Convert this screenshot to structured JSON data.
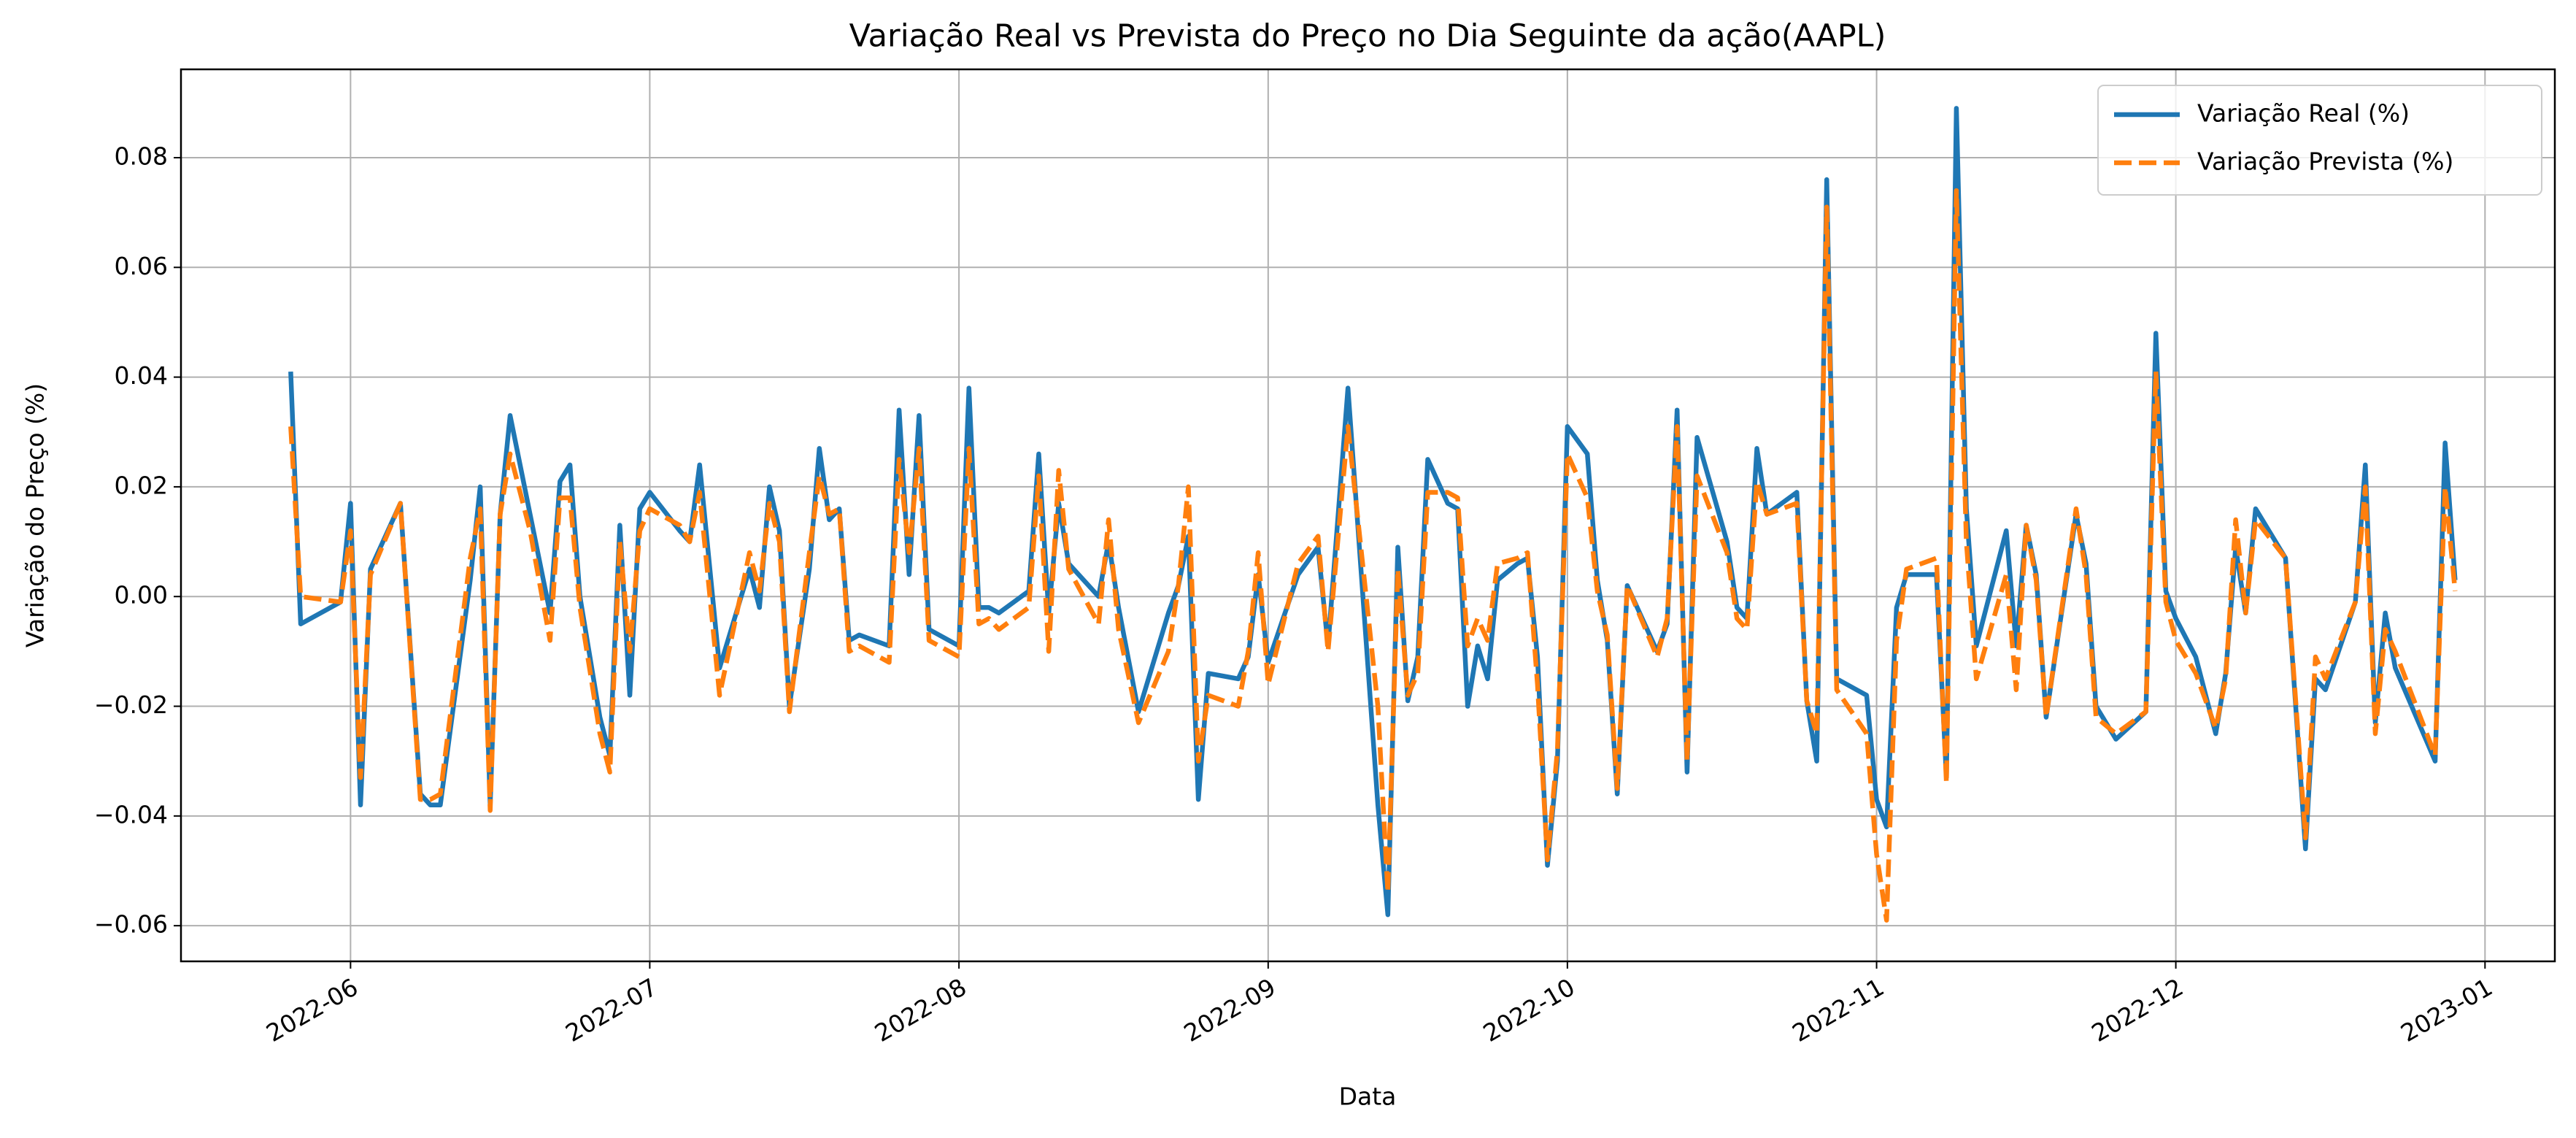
{
  "chart_data": {
    "type": "line",
    "title": "Variação Real vs Prevista do Preço no Dia Seguinte da ação(AAPL)",
    "xlabel": "Data",
    "ylabel": "Variação do Preço (%)",
    "x": [
      "2022-05-26",
      "2022-05-27",
      "2022-05-31",
      "2022-06-01",
      "2022-06-02",
      "2022-06-03",
      "2022-06-06",
      "2022-06-08",
      "2022-06-09",
      "2022-06-10",
      "2022-06-13",
      "2022-06-14",
      "2022-06-15",
      "2022-06-16",
      "2022-06-17",
      "2022-06-19",
      "2022-06-21",
      "2022-06-22",
      "2022-06-23",
      "2022-06-24",
      "2022-06-26",
      "2022-06-27",
      "2022-06-28",
      "2022-06-29",
      "2022-06-30",
      "2022-07-01",
      "2022-07-04",
      "2022-07-05",
      "2022-07-06",
      "2022-07-08",
      "2022-07-11",
      "2022-07-12",
      "2022-07-13",
      "2022-07-14",
      "2022-07-15",
      "2022-07-17",
      "2022-07-18",
      "2022-07-19",
      "2022-07-20",
      "2022-07-21",
      "2022-07-22",
      "2022-07-25",
      "2022-07-26",
      "2022-07-27",
      "2022-07-28",
      "2022-07-29",
      "2022-08-01",
      "2022-08-02",
      "2022-08-03",
      "2022-08-04",
      "2022-08-05",
      "2022-08-08",
      "2022-08-09",
      "2022-08-10",
      "2022-08-11",
      "2022-08-12",
      "2022-08-15",
      "2022-08-16",
      "2022-08-17",
      "2022-08-19",
      "2022-08-22",
      "2022-08-23",
      "2022-08-24",
      "2022-08-25",
      "2022-08-26",
      "2022-08-29",
      "2022-08-30",
      "2022-08-31",
      "2022-09-01",
      "2022-09-04",
      "2022-09-06",
      "2022-09-07",
      "2022-09-09",
      "2022-09-12",
      "2022-09-13",
      "2022-09-14",
      "2022-09-15",
      "2022-09-16",
      "2022-09-17",
      "2022-09-19",
      "2022-09-20",
      "2022-09-21",
      "2022-09-22",
      "2022-09-23",
      "2022-09-24",
      "2022-09-26",
      "2022-09-27",
      "2022-09-28",
      "2022-09-29",
      "2022-09-30",
      "2022-10-01",
      "2022-10-03",
      "2022-10-04",
      "2022-10-05",
      "2022-10-06",
      "2022-10-07",
      "2022-10-10",
      "2022-10-11",
      "2022-10-12",
      "2022-10-13",
      "2022-10-14",
      "2022-10-17",
      "2022-10-18",
      "2022-10-19",
      "2022-10-20",
      "2022-10-21",
      "2022-10-24",
      "2022-10-25",
      "2022-10-26",
      "2022-10-27",
      "2022-10-28",
      "2022-10-31",
      "2022-11-01",
      "2022-11-02",
      "2022-11-03",
      "2022-11-04",
      "2022-11-07",
      "2022-11-08",
      "2022-11-09",
      "2022-11-10",
      "2022-11-11",
      "2022-11-14",
      "2022-11-15",
      "2022-11-16",
      "2022-11-17",
      "2022-11-18",
      "2022-11-21",
      "2022-11-22",
      "2022-11-23",
      "2022-11-25",
      "2022-11-28",
      "2022-11-29",
      "2022-11-30",
      "2022-12-01",
      "2022-12-03",
      "2022-12-05",
      "2022-12-06",
      "2022-12-07",
      "2022-12-08",
      "2022-12-09",
      "2022-12-12",
      "2022-12-14",
      "2022-12-15",
      "2022-12-16",
      "2022-12-19",
      "2022-12-20",
      "2022-12-21",
      "2022-12-22",
      "2022-12-23",
      "2022-12-27",
      "2022-12-28",
      "2022-12-29"
    ],
    "series": [
      {
        "name": "Variação Real (%)",
        "color": "#1f77b4",
        "dash": "solid",
        "values": [
          0.041,
          -0.005,
          -0.001,
          0.017,
          -0.038,
          0.005,
          0.017,
          -0.036,
          -0.038,
          -0.038,
          0.003,
          0.02,
          -0.038,
          0.015,
          0.033,
          0.015,
          -0.003,
          0.021,
          0.024,
          0.0,
          -0.022,
          -0.029,
          0.013,
          -0.018,
          0.016,
          0.019,
          0.012,
          0.01,
          0.024,
          -0.013,
          0.005,
          -0.002,
          0.02,
          0.012,
          -0.02,
          0.005,
          0.027,
          0.014,
          0.016,
          -0.008,
          -0.007,
          -0.009,
          0.034,
          0.004,
          0.033,
          -0.006,
          -0.009,
          0.038,
          -0.002,
          -0.002,
          -0.003,
          0.001,
          0.026,
          -0.003,
          0.017,
          0.006,
          0.0,
          0.01,
          -0.002,
          -0.021,
          -0.003,
          0.002,
          0.011,
          -0.037,
          -0.014,
          -0.015,
          -0.011,
          0.004,
          -0.012,
          0.004,
          0.009,
          -0.009,
          0.038,
          -0.038,
          -0.058,
          0.009,
          -0.019,
          -0.011,
          0.025,
          0.017,
          0.016,
          -0.02,
          -0.009,
          -0.015,
          0.003,
          0.006,
          0.007,
          -0.011,
          -0.049,
          -0.03,
          0.031,
          0.026,
          0.003,
          -0.008,
          -0.036,
          0.002,
          -0.01,
          -0.005,
          0.034,
          -0.032,
          0.029,
          0.01,
          -0.002,
          -0.004,
          0.027,
          0.015,
          0.019,
          -0.019,
          -0.03,
          0.076,
          -0.015,
          -0.018,
          -0.037,
          -0.042,
          -0.002,
          0.004,
          0.004,
          -0.033,
          0.089,
          0.016,
          -0.009,
          0.012,
          -0.009,
          0.013,
          0.004,
          -0.022,
          0.015,
          0.006,
          -0.02,
          -0.026,
          -0.021,
          0.048,
          0.001,
          -0.004,
          -0.011,
          -0.025,
          -0.014,
          0.009,
          -0.003,
          0.016,
          0.007,
          -0.046,
          -0.015,
          -0.017,
          -0.001,
          0.024,
          -0.023,
          -0.003,
          -0.013,
          -0.03,
          0.028,
          0.003
        ]
      },
      {
        "name": "Variação Prevista (%)",
        "color": "#ff7f0e",
        "dash": "dashed",
        "values": [
          0.031,
          0.0,
          -0.001,
          0.012,
          -0.033,
          0.004,
          0.017,
          -0.037,
          -0.037,
          -0.036,
          0.007,
          0.016,
          -0.039,
          0.015,
          0.026,
          0.012,
          -0.008,
          0.018,
          0.018,
          -0.002,
          -0.025,
          -0.032,
          0.01,
          -0.01,
          0.012,
          0.016,
          0.013,
          0.01,
          0.019,
          -0.018,
          0.008,
          0.001,
          0.017,
          0.01,
          -0.021,
          0.008,
          0.022,
          0.015,
          0.016,
          -0.01,
          -0.009,
          -0.012,
          0.025,
          0.008,
          0.027,
          -0.008,
          -0.011,
          0.027,
          -0.005,
          -0.004,
          -0.006,
          -0.002,
          0.022,
          -0.01,
          0.023,
          0.005,
          -0.005,
          0.014,
          -0.006,
          -0.023,
          -0.01,
          0.002,
          0.02,
          -0.03,
          -0.018,
          -0.02,
          -0.01,
          0.008,
          -0.016,
          0.006,
          0.011,
          -0.01,
          0.031,
          -0.02,
          -0.054,
          0.005,
          -0.018,
          -0.014,
          0.019,
          0.019,
          0.018,
          -0.009,
          -0.004,
          -0.008,
          0.006,
          0.007,
          0.008,
          -0.016,
          -0.048,
          -0.028,
          0.026,
          0.018,
          0.001,
          -0.007,
          -0.035,
          0.002,
          -0.011,
          -0.004,
          0.031,
          -0.03,
          0.022,
          0.008,
          -0.004,
          -0.006,
          0.021,
          0.015,
          0.017,
          -0.019,
          -0.025,
          0.071,
          -0.017,
          -0.025,
          -0.047,
          -0.059,
          -0.008,
          0.005,
          0.007,
          -0.034,
          0.074,
          0.01,
          -0.015,
          0.004,
          -0.017,
          0.013,
          0.003,
          -0.022,
          0.016,
          0.004,
          -0.022,
          -0.025,
          -0.021,
          0.041,
          -0.001,
          -0.008,
          -0.014,
          -0.024,
          -0.015,
          0.014,
          -0.003,
          0.014,
          0.007,
          -0.044,
          -0.011,
          -0.015,
          -0.001,
          0.02,
          -0.025,
          -0.006,
          -0.01,
          -0.029,
          0.02,
          0.001
        ]
      }
    ],
    "xlim": [
      "2022-05-15",
      "2023-01-08"
    ],
    "xticks": [
      {
        "value": "2022-06-01",
        "label": "2022-06"
      },
      {
        "value": "2022-07-01",
        "label": "2022-07"
      },
      {
        "value": "2022-08-01",
        "label": "2022-08"
      },
      {
        "value": "2022-09-01",
        "label": "2022-09"
      },
      {
        "value": "2022-10-01",
        "label": "2022-10"
      },
      {
        "value": "2022-11-01",
        "label": "2022-11"
      },
      {
        "value": "2022-12-01",
        "label": "2022-12"
      },
      {
        "value": "2023-01-01",
        "label": "2023-01"
      }
    ],
    "ylim": [
      -0.0665,
      0.0961
    ],
    "yticks": [
      {
        "value": -0.06,
        "label": "−0.06"
      },
      {
        "value": -0.04,
        "label": "−0.04"
      },
      {
        "value": -0.02,
        "label": "−0.02"
      },
      {
        "value": 0,
        "label": "0.00"
      },
      0.02,
      0.04,
      0.06,
      0.08
    ],
    "grid": true,
    "legend": "upper right"
  }
}
